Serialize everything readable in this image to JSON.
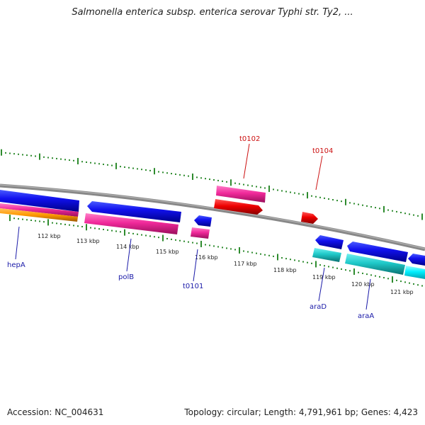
{
  "title": "Salmonella enterica subsp. enterica serovar Typhi str. Ty2, ...",
  "footer": {
    "accession": "Accession: NC_004631",
    "summary": "Topology: circular; Length: 4,791,961 bp; Genes: 4,423"
  },
  "colors": {
    "backbone": "#888888",
    "ticks": "#2e8b2e",
    "gene_label_blue": "#1a1aa8",
    "gene_label_red": "#cc1111"
  },
  "scale_labels": [
    "112 kbp",
    "113 kbp",
    "114 kbp",
    "115 kbp",
    "116 kbp",
    "117 kbp",
    "118 kbp",
    "119 kbp",
    "120 kbp",
    "121 kbp"
  ],
  "gene_labels": [
    {
      "text": "hepA",
      "color": "blue"
    },
    {
      "text": "polB",
      "color": "blue"
    },
    {
      "text": "t0101",
      "color": "blue"
    },
    {
      "text": "araD",
      "color": "blue"
    },
    {
      "text": "araA",
      "color": "blue"
    },
    {
      "text": "t0102",
      "color": "red"
    },
    {
      "text": "t0104",
      "color": "red"
    }
  ]
}
